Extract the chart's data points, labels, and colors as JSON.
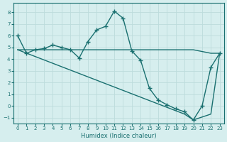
{
  "line1_x": [
    0,
    1,
    2,
    3,
    4,
    5,
    6,
    7,
    8,
    9,
    10,
    11,
    12,
    13,
    14,
    15,
    16,
    17,
    18,
    19,
    20,
    21,
    22,
    23
  ],
  "line1_y": [
    6.0,
    4.5,
    4.8,
    4.9,
    5.2,
    5.0,
    4.8,
    4.1,
    5.5,
    6.5,
    6.8,
    8.1,
    7.5,
    4.7,
    3.9,
    1.5,
    0.5,
    0.1,
    -0.25,
    -0.5,
    -1.2,
    0.0,
    3.3,
    4.5
  ],
  "flat_x": [
    0,
    13,
    19,
    20,
    22,
    23
  ],
  "flat_y": [
    4.8,
    4.8,
    4.8,
    4.8,
    4.5,
    4.5
  ],
  "diag_x": [
    0,
    19,
    20,
    22,
    23
  ],
  "diag_y": [
    4.8,
    -0.7,
    -1.2,
    -0.7,
    4.5
  ],
  "color": "#1a7070",
  "bg_color": "#d6eeee",
  "grid_color": "#bcdcdc",
  "xlabel": "Humidex (Indice chaleur)",
  "xlim": [
    -0.5,
    23.5
  ],
  "ylim": [
    -1.5,
    8.8
  ],
  "yticks": [
    -1,
    0,
    1,
    2,
    3,
    4,
    5,
    6,
    7,
    8
  ],
  "xticks": [
    0,
    1,
    2,
    3,
    4,
    5,
    6,
    7,
    8,
    9,
    10,
    11,
    12,
    13,
    14,
    15,
    16,
    17,
    18,
    19,
    20,
    21,
    22,
    23
  ]
}
